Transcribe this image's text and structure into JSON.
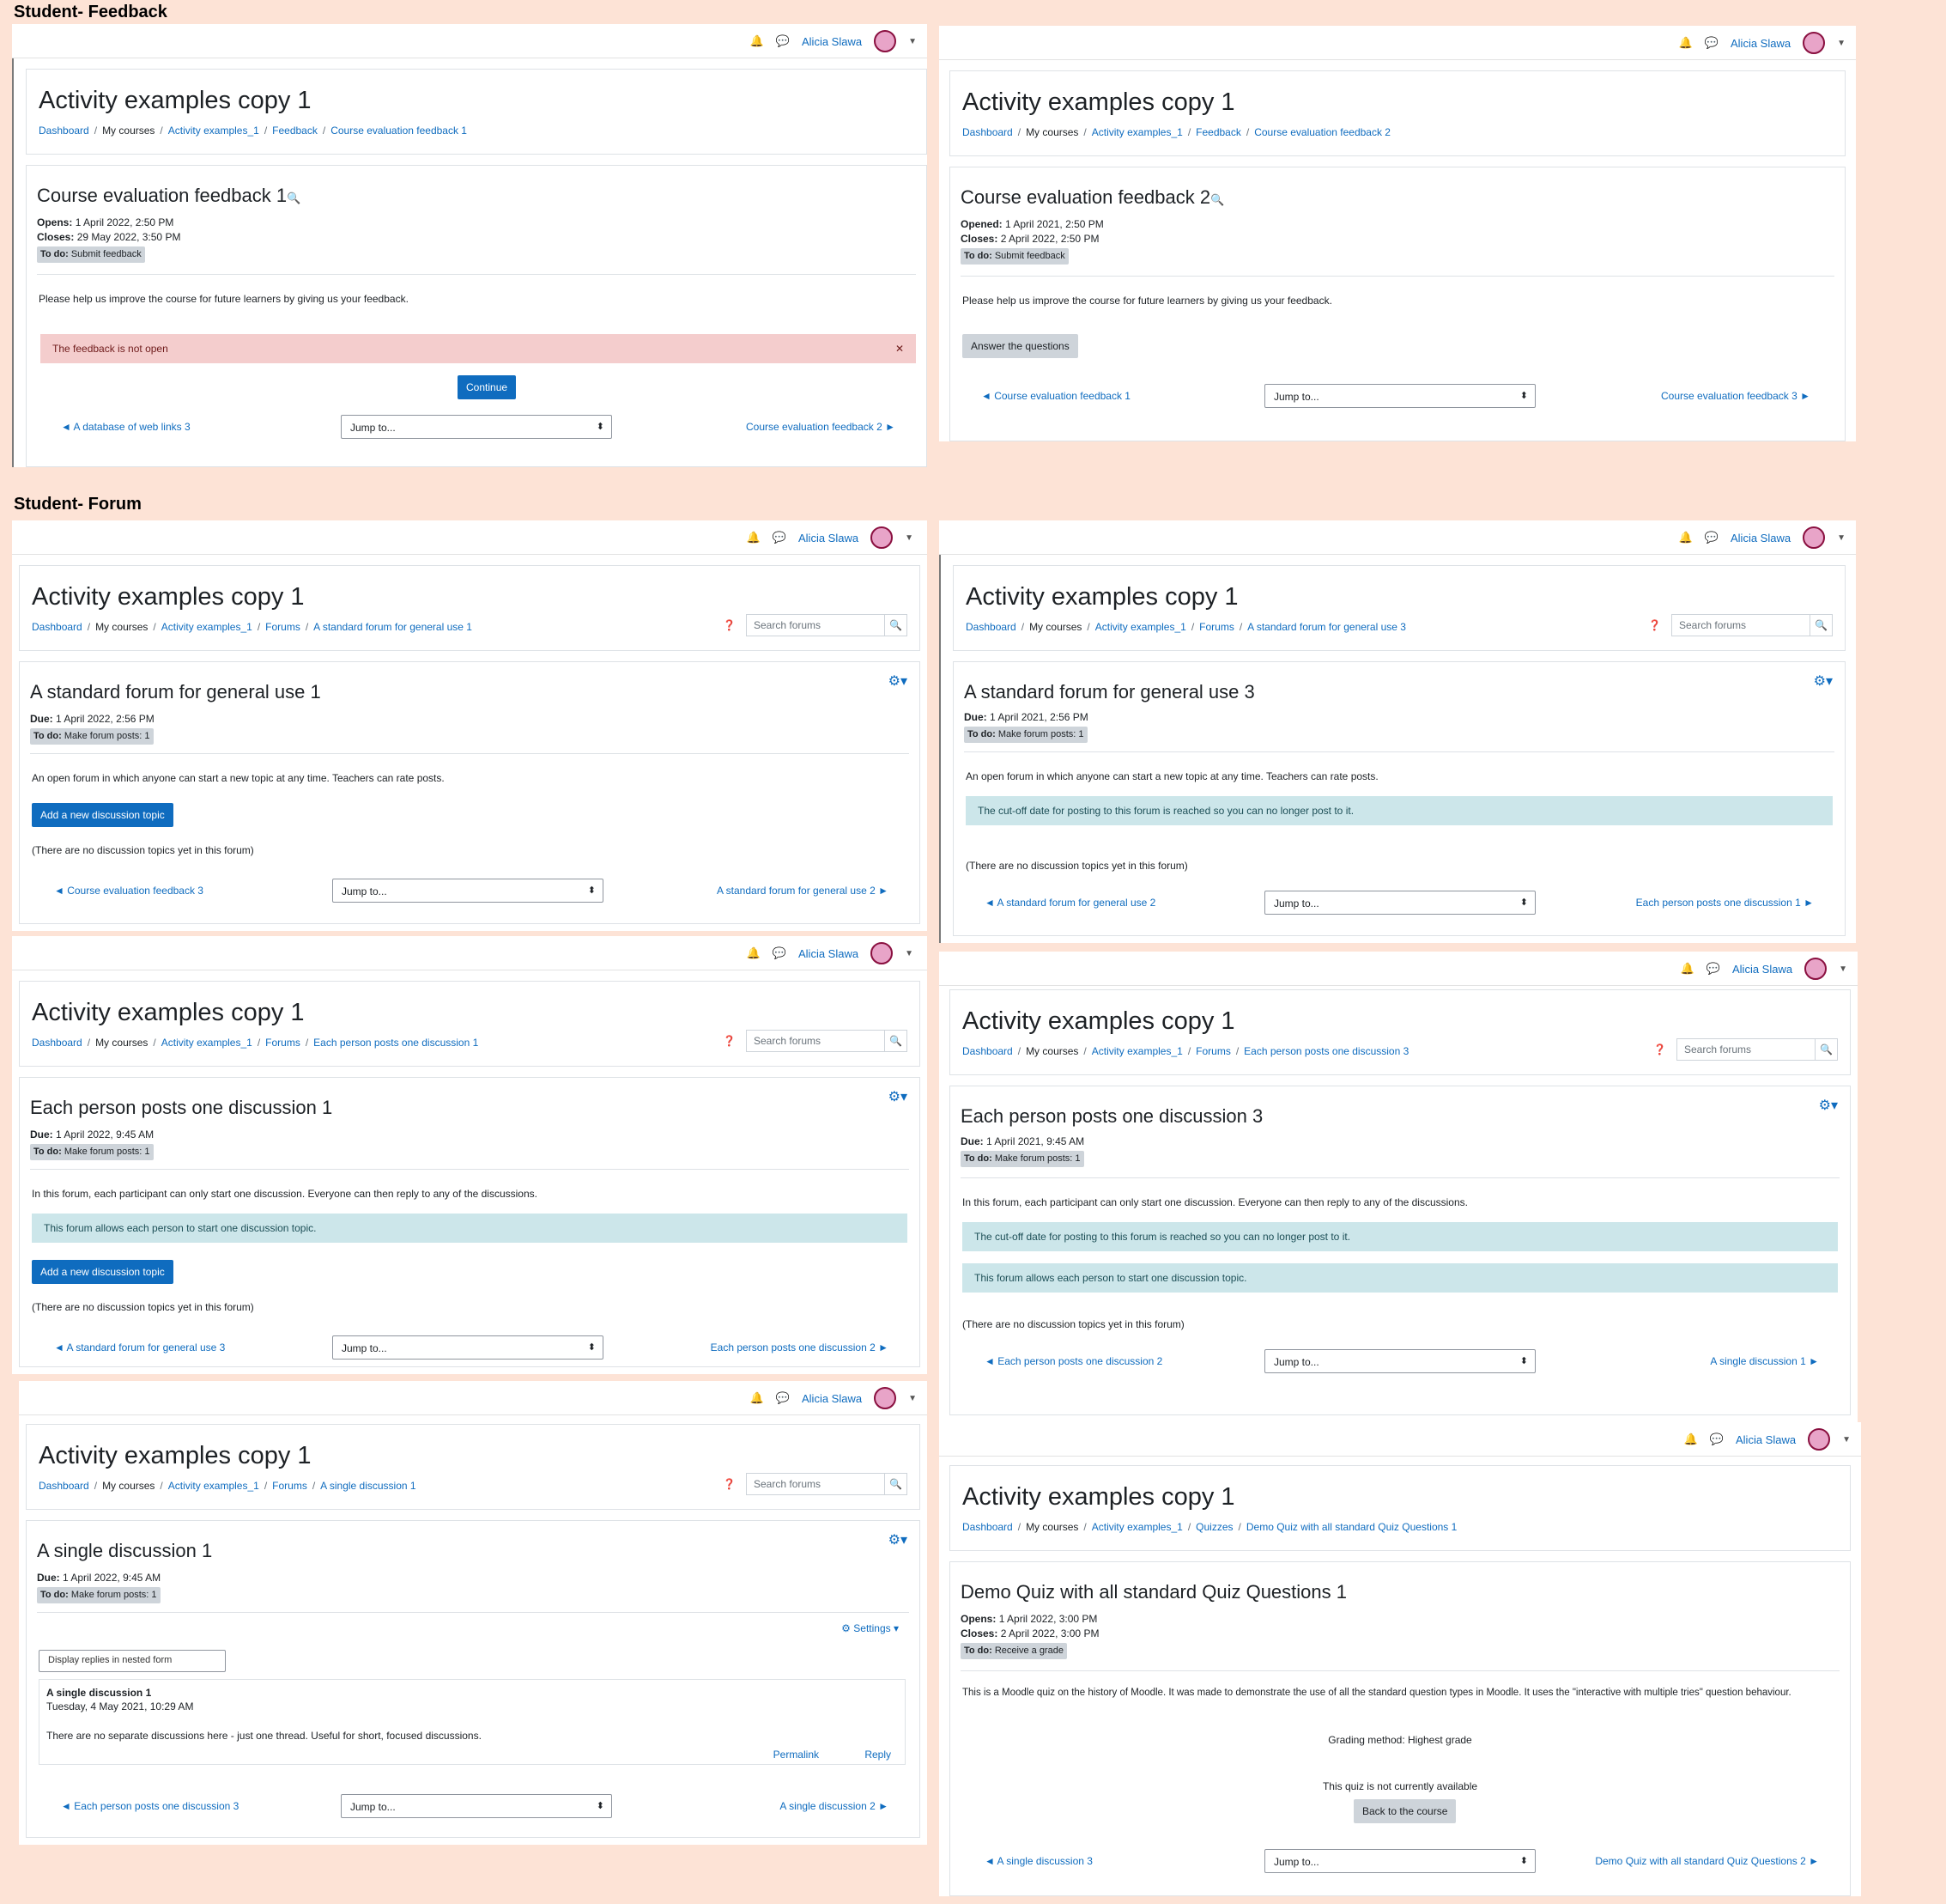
{
  "section_labels": {
    "feedback": "Student- Feedback",
    "forum": "Student- Forum"
  },
  "topbar": {
    "user": "Alicia Slawa",
    "bell_icon": "bell-icon",
    "chat_icon": "chat-icon"
  },
  "course_title": "Activity examples copy 1",
  "common": {
    "dashboard": "Dashboard",
    "my_courses": "My courses",
    "course": "Activity examples_1",
    "sep": "/",
    "jump": "Jump to...",
    "search_placeholder": "Search forums",
    "todo_label": "To do:",
    "due_label": "Due:",
    "opens_label": "Opens:",
    "opened_label": "Opened:",
    "closes_label": "Closes:",
    "no_topics": "(There are no discussion topics yet in this forum)",
    "add_topic": "Add a new discussion topic",
    "cutoff": "The cut-off date for posting to this forum is reached so you can no longer post to it.",
    "one_topic": "This forum allows each person to start one discussion topic."
  },
  "fb1": {
    "crumb_mod": "Feedback",
    "crumb_page": "Course evaluation feedback 1",
    "title": "Course evaluation feedback 1",
    "opens": "1 April 2022, 2:50 PM",
    "closes": "29 May 2022, 3:50 PM",
    "todo": "Submit feedback",
    "intro": "Please help us improve the course for future learners by giving us your feedback.",
    "alert": "The feedback is not open",
    "continue": "Continue",
    "prev": "◄ A database of web links 3",
    "next": "Course evaluation feedback 2 ►"
  },
  "fb2": {
    "crumb_mod": "Feedback",
    "crumb_page": "Course evaluation feedback 2",
    "title": "Course evaluation feedback 2",
    "opened": "1 April 2021, 2:50 PM",
    "closes": "2 April 2022, 2:50 PM",
    "todo": "Submit feedback",
    "intro": "Please help us improve the course for future learners by giving us your feedback.",
    "answer": "Answer the questions",
    "prev": "◄ Course evaluation feedback 1",
    "next": "Course evaluation feedback 3 ►"
  },
  "f1": {
    "crumb_mod": "Forums",
    "crumb_page": "A standard forum for general use 1",
    "title": "A standard forum for general use 1",
    "due": "1 April 2022, 2:56 PM",
    "todo": "Make forum posts: 1",
    "intro": "An open forum in which anyone can start a new topic at any time. Teachers can rate posts.",
    "prev": "◄ Course evaluation feedback 3",
    "next": "A standard forum for general use 2 ►"
  },
  "f3": {
    "crumb_mod": "Forums",
    "crumb_page": "A standard forum for general use 3",
    "title": "A standard forum for general use 3",
    "due": "1 April 2021, 2:56 PM",
    "todo": "Make forum posts: 1",
    "intro": "An open forum in which anyone can start a new topic at any time. Teachers can rate posts.",
    "prev": "◄ A standard forum for general use 2",
    "next": "Each person posts one discussion 1 ►"
  },
  "e1": {
    "crumb_mod": "Forums",
    "crumb_page": "Each person posts one discussion 1",
    "title": "Each person posts one discussion 1",
    "due": "1 April 2022, 9:45 AM",
    "todo": "Make forum posts: 1",
    "intro": "In this forum, each participant can only start one discussion. Everyone can then reply to any of the discussions.",
    "prev": "◄ A standard forum for general use 3",
    "next": "Each person posts one discussion 2 ►"
  },
  "e3": {
    "crumb_mod": "Forums",
    "crumb_page": "Each person posts one discussion 3",
    "title": "Each person posts one discussion 3",
    "due": "1 April 2021, 9:45 AM",
    "todo": "Make forum posts: 1",
    "intro": "In this forum, each participant can only start one discussion. Everyone can then reply to any of the discussions.",
    "prev": "◄ Each person posts one discussion 2",
    "next": "A single discussion 1 ►"
  },
  "s1": {
    "crumb_mod": "Forums",
    "crumb_page": "A single discussion 1",
    "title": "A single discussion 1",
    "due": "1 April 2022, 9:45 AM",
    "todo": "Make forum posts: 1",
    "settings": "Settings",
    "display": "Display replies in nested form",
    "post_title": "A single discussion 1",
    "post_date": "Tuesday, 4 May 2021, 10:29 AM",
    "post_body": "There are no separate discussions here - just one thread. Useful for short, focused discussions.",
    "permalink": "Permalink",
    "reply": "Reply",
    "prev": "◄ Each person posts one discussion 3",
    "next": "A single discussion 2 ►"
  },
  "q1": {
    "crumb_mod": "Quizzes",
    "crumb_page": "Demo Quiz with all standard Quiz Questions 1",
    "title": "Demo Quiz with all standard Quiz Questions 1",
    "opens": "1 April 2022, 3:00 PM",
    "closes": "2 April 2022, 3:00 PM",
    "todo_label": "To do:",
    "todo": "Receive a grade",
    "intro": "This is a Moodle quiz on the history of Moodle. It was made to demonstrate the use of all the standard question types in Moodle. It uses the \"interactive with multiple tries\" question behaviour.",
    "grading": "Grading method: Highest grade",
    "unavailable": "This quiz is not currently available",
    "back": "Back to the course",
    "prev": "◄ A single discussion 3",
    "next": "Demo Quiz with all standard Quiz Questions 2 ►"
  }
}
